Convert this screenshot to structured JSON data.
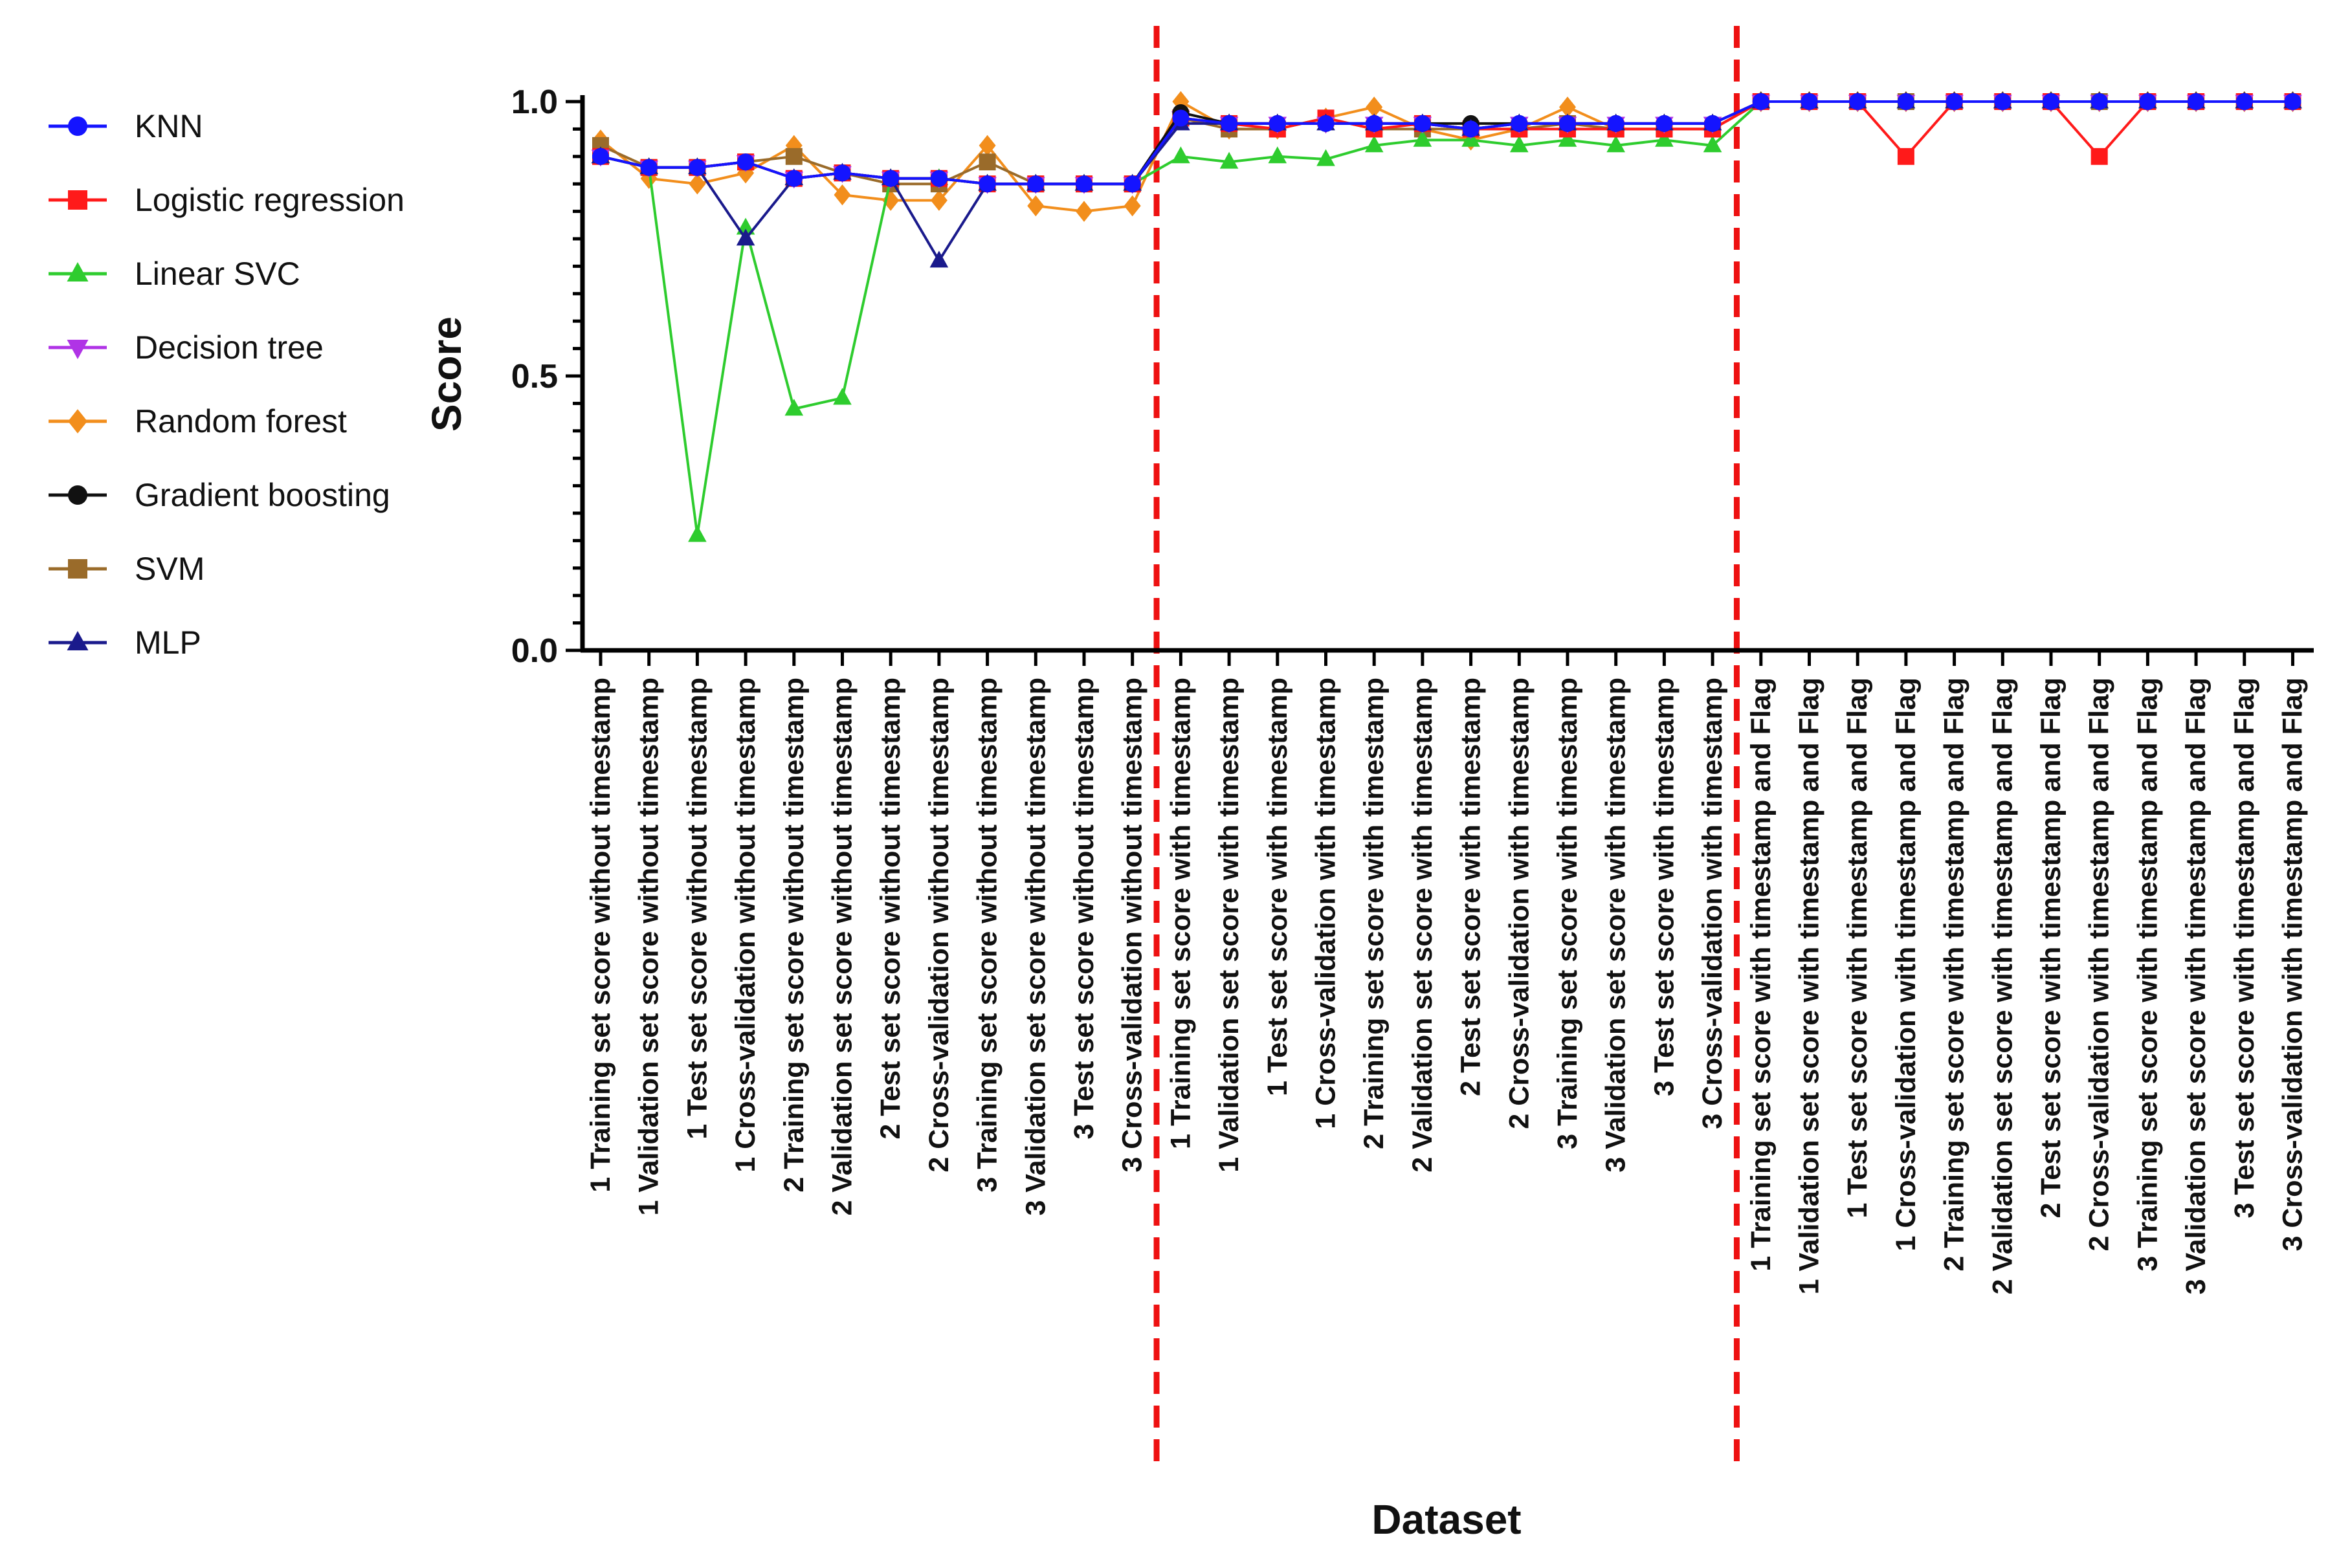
{
  "chart_data": {
    "type": "line",
    "title": "",
    "xlabel": "Dataset",
    "ylabel": "Score",
    "ylim": [
      0,
      1
    ],
    "yticks": [
      0.0,
      0.5,
      1.0
    ],
    "ytick_labels": [
      "0.0",
      "0.5",
      "1.0"
    ],
    "grid": false,
    "legend_position": "left",
    "categories": [
      "1 Training set score without timestamp",
      "1 Validation set score without timestamp",
      "1 Test set score without timestamp",
      "1 Cross-validation without timestamp",
      "2 Training set score without timestamp",
      "2 Validation set score without timestamp",
      "2 Test set score without timestamp",
      "2 Cross-validation without timestamp",
      "3 Training set score without timestamp",
      "3 Validation set score without timestamp",
      "3 Test set score without timestamp",
      "3 Cross-validation without timestamp",
      "1 Training set score with timestamp",
      "1 Validation set score with timestamp",
      "1 Test set score with timestamp",
      "1 Cross-validation with timestamp",
      "2 Training set score with timestamp",
      "2 Validation set score with timestamp",
      "2 Test set score with timestamp",
      "2 Cross-validation with timestamp",
      "3 Training set score with timestamp",
      "3 Validation set score with timestamp",
      "3 Test set score with timestamp",
      "3 Cross-validation with timestamp",
      "1 Training set score with timestamp and Flag",
      "1 Validation set score with timestamp and Flag",
      "1 Test set score with timestamp and Flag",
      "1 Cross-validation with timestamp and Flag",
      "2 Training set score with timestamp and Flag",
      "2 Validation set score with timestamp and Flag",
      "2 Test set score with timestamp and Flag",
      "2 Cross-validation with timestamp and Flag",
      "3 Training set score with timestamp and Flag",
      "3 Validation set score with timestamp and Flag",
      "3 Test set score with timestamp and Flag",
      "3 Cross-validation with timestamp and Flag"
    ],
    "separators_after_index": [
      11,
      23
    ],
    "series": [
      {
        "name": "Random forest",
        "color": "#f28e1c",
        "marker": "diamond",
        "values": [
          0.93,
          0.86,
          0.85,
          0.87,
          0.92,
          0.83,
          0.82,
          0.82,
          0.92,
          0.81,
          0.8,
          0.81,
          1.0,
          0.95,
          0.95,
          0.97,
          0.99,
          0.95,
          0.93,
          0.95,
          0.99,
          0.95,
          0.95,
          0.95,
          1.0,
          1.0,
          1.0,
          1.0,
          1.0,
          1.0,
          1.0,
          1.0,
          1.0,
          1.0,
          1.0,
          1.0
        ]
      },
      {
        "name": "SVM",
        "color": "#9a6b2a",
        "marker": "square",
        "values": [
          0.92,
          0.88,
          0.88,
          0.89,
          0.9,
          0.87,
          0.85,
          0.85,
          0.89,
          0.85,
          0.85,
          0.85,
          0.97,
          0.95,
          0.95,
          0.97,
          0.95,
          0.95,
          0.95,
          0.95,
          0.96,
          0.95,
          0.95,
          0.95,
          1.0,
          1.0,
          1.0,
          1.0,
          1.0,
          1.0,
          1.0,
          1.0,
          1.0,
          1.0,
          1.0,
          1.0
        ]
      },
      {
        "name": "Linear SVC",
        "color": "#2ecc2e",
        "marker": "triangle-up",
        "values": [
          0.9,
          0.88,
          0.21,
          0.77,
          0.44,
          0.46,
          0.86,
          0.86,
          0.85,
          0.85,
          0.85,
          0.85,
          0.9,
          0.89,
          0.9,
          0.895,
          0.92,
          0.93,
          0.93,
          0.92,
          0.93,
          0.92,
          0.93,
          0.92,
          1.0,
          1.0,
          1.0,
          1.0,
          1.0,
          1.0,
          1.0,
          1.0,
          1.0,
          1.0,
          1.0,
          1.0
        ]
      },
      {
        "name": "Logistic regression",
        "color": "#ff1a1a",
        "marker": "square",
        "values": [
          0.9,
          0.88,
          0.88,
          0.89,
          0.86,
          0.87,
          0.86,
          0.86,
          0.85,
          0.85,
          0.85,
          0.85,
          0.97,
          0.96,
          0.95,
          0.97,
          0.95,
          0.96,
          0.95,
          0.95,
          0.95,
          0.95,
          0.95,
          0.95,
          1.0,
          1.0,
          1.0,
          0.9,
          1.0,
          1.0,
          1.0,
          0.9,
          1.0,
          1.0,
          1.0,
          1.0
        ]
      },
      {
        "name": "Decision tree",
        "color": "#b033e6",
        "marker": "triangle-down",
        "values": [
          0.9,
          0.88,
          0.88,
          0.89,
          0.86,
          0.87,
          0.86,
          0.86,
          0.85,
          0.85,
          0.85,
          0.85,
          0.97,
          0.96,
          0.96,
          0.96,
          0.96,
          0.96,
          0.95,
          0.96,
          0.96,
          0.96,
          0.96,
          0.96,
          1.0,
          1.0,
          1.0,
          1.0,
          1.0,
          1.0,
          1.0,
          1.0,
          1.0,
          1.0,
          1.0,
          1.0
        ]
      },
      {
        "name": "Gradient boosting",
        "color": "#111111",
        "marker": "circle",
        "values": [
          0.9,
          0.88,
          0.88,
          0.89,
          0.86,
          0.87,
          0.86,
          0.86,
          0.85,
          0.85,
          0.85,
          0.85,
          0.98,
          0.96,
          0.96,
          0.96,
          0.96,
          0.96,
          0.96,
          0.96,
          0.96,
          0.96,
          0.96,
          0.96,
          1.0,
          1.0,
          1.0,
          1.0,
          1.0,
          1.0,
          1.0,
          1.0,
          1.0,
          1.0,
          1.0,
          1.0
        ]
      },
      {
        "name": "MLP",
        "color": "#1a1a8c",
        "marker": "triangle-up",
        "values": [
          0.9,
          0.88,
          0.88,
          0.75,
          0.86,
          0.87,
          0.86,
          0.71,
          0.85,
          0.85,
          0.85,
          0.85,
          0.96,
          0.96,
          0.96,
          0.96,
          0.96,
          0.96,
          0.95,
          0.96,
          0.96,
          0.96,
          0.96,
          0.96,
          1.0,
          1.0,
          1.0,
          1.0,
          1.0,
          1.0,
          1.0,
          1.0,
          1.0,
          1.0,
          1.0,
          1.0
        ]
      },
      {
        "name": "KNN",
        "color": "#1414ff",
        "marker": "circle",
        "values": [
          0.9,
          0.88,
          0.88,
          0.89,
          0.86,
          0.87,
          0.86,
          0.86,
          0.85,
          0.85,
          0.85,
          0.85,
          0.97,
          0.96,
          0.96,
          0.96,
          0.96,
          0.96,
          0.95,
          0.96,
          0.96,
          0.96,
          0.96,
          0.96,
          1.0,
          1.0,
          1.0,
          1.0,
          1.0,
          1.0,
          1.0,
          1.0,
          1.0,
          1.0,
          1.0,
          1.0
        ]
      }
    ],
    "legend_order": [
      "KNN",
      "Logistic regression",
      "Linear SVC",
      "Decision tree",
      "Random forest",
      "Gradient boosting",
      "SVM",
      "MLP"
    ]
  }
}
